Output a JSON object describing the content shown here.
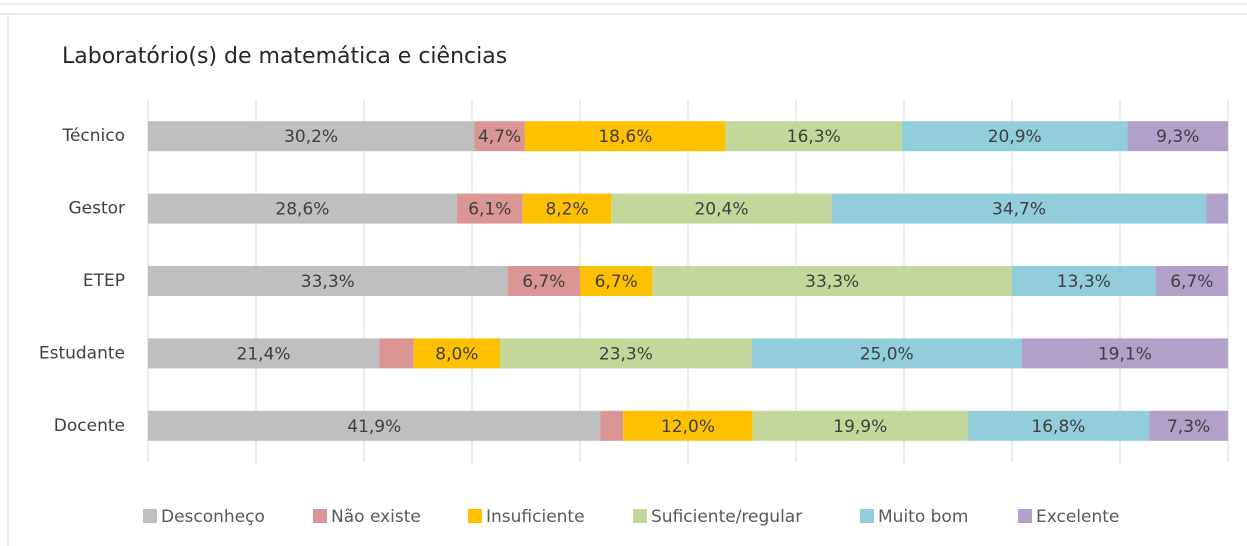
{
  "chart_data": {
    "type": "stacked_barh",
    "title": "Laboratório(s) de matemática e ciências",
    "categories": [
      "Técnico",
      "Gestor",
      "ETEP",
      "Estudante",
      "Docente"
    ],
    "xlim": [
      0,
      100
    ],
    "xticks": [
      0,
      10,
      20,
      30,
      40,
      50,
      60,
      70,
      80,
      90,
      100
    ],
    "grid": true,
    "legend": "bottom",
    "series": [
      {
        "name": "Desconheço",
        "color": "#bfbfbf",
        "values": [
          30.2,
          28.6,
          33.3,
          21.4,
          41.9
        ],
        "value_labels": [
          "30,2%",
          "28,6%",
          "33,3%",
          "21,4%",
          "41,9%"
        ]
      },
      {
        "name": "Não existe",
        "color": "#da9694",
        "values": [
          4.7,
          6.1,
          6.7,
          3.2,
          2.1
        ],
        "value_labels": [
          "4,7%",
          "6,1%",
          "6,7%",
          null,
          null
        ]
      },
      {
        "name": "Insuficiente",
        "color": "#ffc000",
        "values": [
          18.6,
          8.2,
          6.7,
          8.0,
          12.0
        ],
        "value_labels": [
          "18,6%",
          "8,2%",
          "6,7%",
          "8,0%",
          "12,0%"
        ]
      },
      {
        "name": "Suficiente/regular",
        "color": "#c4d79b",
        "values": [
          16.3,
          20.4,
          33.3,
          23.3,
          19.9
        ],
        "value_labels": [
          "16,3%",
          "20,4%",
          "33,3%",
          "23,3%",
          "19,9%"
        ]
      },
      {
        "name": "Muito bom",
        "color": "#92cddc",
        "values": [
          20.9,
          34.7,
          13.3,
          25.0,
          16.8
        ],
        "value_labels": [
          "20,9%",
          "34,7%",
          "13,3%",
          "25,0%",
          "16,8%"
        ]
      },
      {
        "name": "Excelente",
        "color": "#b1a0c7",
        "values": [
          9.3,
          2.0,
          6.7,
          19.1,
          7.3
        ],
        "value_labels": [
          "9,3%",
          null,
          "6,7%",
          "19,1%",
          "7,3%"
        ]
      }
    ]
  }
}
